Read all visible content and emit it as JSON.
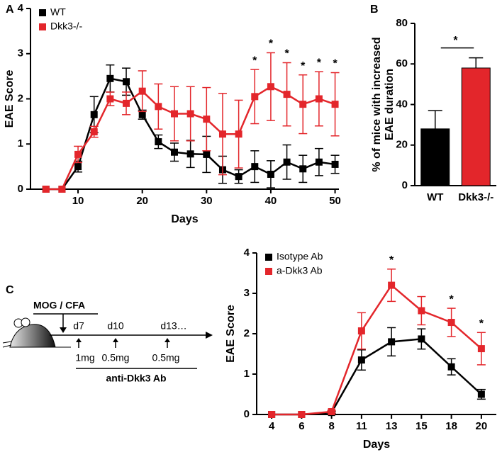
{
  "chart_data": [
    {
      "type": "line",
      "panel": "A",
      "xlabel": "Days",
      "ylabel": "EAE Score",
      "x": [
        5,
        7.5,
        10,
        12.5,
        15,
        17.5,
        20,
        22.5,
        25,
        27.5,
        30,
        32.5,
        35,
        37.5,
        40,
        42.5,
        45,
        47.5,
        50
      ],
      "xlim": [
        2.6,
        50.6
      ],
      "xticks": [
        10,
        20,
        30,
        40,
        50
      ],
      "ylim": [
        0,
        4
      ],
      "yticks": [
        0,
        1,
        2,
        3,
        4
      ],
      "legend": "upper left",
      "series": [
        {
          "name": "WT",
          "color": "#000000",
          "values": [
            0,
            0,
            0.5,
            1.65,
            2.45,
            2.38,
            1.65,
            1.05,
            0.82,
            0.78,
            0.77,
            0.43,
            0.28,
            0.5,
            0.33,
            0.6,
            0.45,
            0.6,
            0.55
          ],
          "errors": [
            0,
            0,
            0.12,
            0.4,
            0.3,
            0.3,
            0.1,
            0.15,
            0.2,
            0.3,
            0.4,
            0.3,
            0.15,
            0.35,
            0.3,
            0.38,
            0.3,
            0.3,
            0.2
          ]
        },
        {
          "name": "Dkk3-/-",
          "color": "#e3262b",
          "values": [
            0,
            0,
            0.77,
            1.27,
            2.0,
            1.9,
            2.17,
            1.83,
            1.67,
            1.67,
            1.55,
            1.22,
            1.22,
            2.05,
            2.27,
            2.1,
            1.88,
            2.0,
            1.88
          ],
          "errors": [
            0,
            0,
            0.18,
            0.12,
            0.15,
            0.25,
            0.45,
            0.5,
            0.6,
            0.6,
            0.7,
            0.9,
            0.75,
            0.6,
            0.75,
            0.7,
            0.65,
            0.6,
            0.7
          ]
        }
      ],
      "annotations": [
        {
          "x": 37.5,
          "text": "*"
        },
        {
          "x": 40,
          "text": "*"
        },
        {
          "x": 42.5,
          "text": "*"
        },
        {
          "x": 45,
          "text": "*"
        },
        {
          "x": 47.5,
          "text": "*"
        },
        {
          "x": 50,
          "text": "*"
        }
      ]
    },
    {
      "type": "bar",
      "panel": "B",
      "ylabel": [
        "% of mice with increased",
        "EAE duration"
      ],
      "categories": [
        "WT",
        "Dkk3-/-"
      ],
      "values": [
        28,
        58
      ],
      "errors": [
        9,
        5
      ],
      "colors": [
        "#000000",
        "#e3262b"
      ],
      "ylim": [
        0,
        80
      ],
      "yticks": [
        0,
        20,
        40,
        60,
        80
      ],
      "comparison": "*"
    },
    {
      "type": "line",
      "panel": "C",
      "xlabel": "Days",
      "ylabel": "EAE Score",
      "categories": [
        "4",
        "6",
        "8",
        "11",
        "13",
        "15",
        "18",
        "20"
      ],
      "ylim": [
        0,
        4
      ],
      "yticks": [
        0,
        1,
        2,
        3,
        4
      ],
      "legend": "upper left",
      "series": [
        {
          "name": "Isotype Ab",
          "color": "#000000",
          "values": [
            0,
            0,
            0.05,
            1.35,
            1.8,
            1.87,
            1.18,
            0.5
          ],
          "errors": [
            0,
            0,
            0.03,
            0.25,
            0.35,
            0.25,
            0.2,
            0.12
          ]
        },
        {
          "name": "a-Dkk3 Ab",
          "color": "#e3262b",
          "values": [
            0,
            0,
            0.07,
            2.07,
            3.2,
            2.57,
            2.28,
            1.63
          ],
          "errors": [
            0,
            0,
            0.03,
            0.45,
            0.4,
            0.35,
            0.35,
            0.4
          ]
        }
      ],
      "annotations": [
        {
          "category": "13",
          "text": "*"
        },
        {
          "category": "18",
          "text": "*"
        },
        {
          "category": "20",
          "text": "*"
        }
      ]
    }
  ],
  "diagram": {
    "immunization": "MOG / CFA",
    "days": [
      "d7",
      "d10",
      "d13…"
    ],
    "doses": [
      "1mg",
      "0.5mg",
      "0.5mg"
    ],
    "treatment": "anti-Dkk3 Ab"
  }
}
